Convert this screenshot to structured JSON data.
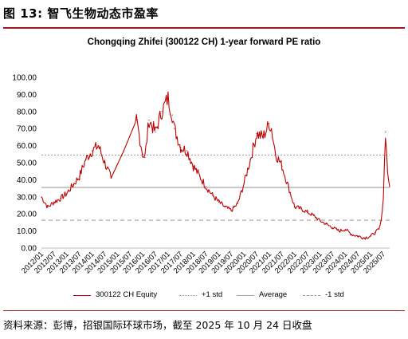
{
  "figure_title": "图 13: 智飞生物动态市盈率",
  "source": "资料来源：彭博，招银国际环球市场，截至 2025 年 10 月 24 日收盘",
  "chart_data": {
    "type": "line",
    "title": "Chongqing Zhifei (300122 CH) 1-year forward PE ratio",
    "xlabel": "",
    "ylabel": "",
    "ylim": [
      0,
      100
    ],
    "y_ticks": [
      "0.00",
      "10.00",
      "20.00",
      "30.00",
      "40.00",
      "50.00",
      "60.00",
      "70.00",
      "80.00",
      "90.00",
      "100.00"
    ],
    "x_range": [
      "2012-01",
      "2025-10"
    ],
    "x_ticks": [
      "2012/01",
      "2012/07",
      "2013/01",
      "2013/07",
      "2014/01",
      "2014/07",
      "2015/01",
      "2015/07",
      "2016/01",
      "2016/07",
      "2017/01",
      "2017/07",
      "2018/01",
      "2018/07",
      "2019/01",
      "2019/07",
      "2020/01",
      "2020/07",
      "2021/01",
      "2021/07",
      "2022/01",
      "2022/07",
      "2023/01",
      "2023/07",
      "2024/01",
      "2024/07",
      "2025/01",
      "2025/07"
    ],
    "grid": false,
    "legend_position": "bottom",
    "series": [
      {
        "name": "300122 CH Equity",
        "color": "#c00000",
        "style": "solid",
        "x": [
          "2012-01",
          "2012-04",
          "2012-07",
          "2012-10",
          "2013-01",
          "2013-04",
          "2013-07",
          "2013-10",
          "2014-01",
          "2014-04",
          "2014-07",
          "2014-10",
          "2015-01",
          "2015-04",
          "2015-07",
          "2015-10",
          "2016-01",
          "2016-02",
          "2016-04",
          "2016-07",
          "2016-10",
          "2017-01",
          "2017-03",
          "2017-04",
          "2017-07",
          "2017-10",
          "2018-01",
          "2018-04",
          "2018-07",
          "2018-10",
          "2019-01",
          "2019-04",
          "2019-07",
          "2019-10",
          "2020-01",
          "2020-04",
          "2020-07",
          "2020-10",
          "2021-01",
          "2021-02",
          "2021-04",
          "2021-07",
          "2021-10",
          "2022-01",
          "2022-04",
          "2022-07",
          "2022-10",
          "2023-01",
          "2023-04",
          "2023-07",
          "2023-10",
          "2024-01",
          "2024-04",
          "2024-07",
          "2024-10",
          "2025-01",
          "2025-03",
          "2025-05",
          "2025-06",
          "2025-07",
          "2025-08",
          "2025-09",
          "2025-10"
        ],
        "values": [
          30,
          24,
          27,
          29,
          32,
          37,
          42,
          52,
          57,
          60,
          50,
          41,
          49,
          57,
          66,
          75,
          55,
          53,
          75,
          68,
          80,
          88,
          78,
          70,
          59,
          57,
          48,
          42,
          36,
          31,
          27,
          24,
          22,
          26,
          38,
          52,
          67,
          65,
          73,
          70,
          55,
          48,
          36,
          24,
          23,
          21,
          19,
          16,
          14,
          12,
          10,
          11,
          8,
          7,
          6,
          7,
          9,
          11,
          16,
          30,
          68,
          45,
          36
        ]
      },
      {
        "name": "+1 std",
        "color": "#999999",
        "style": "dotted",
        "values": [
          54.5
        ]
      },
      {
        "name": "Average",
        "color": "#a6a6a6",
        "style": "solid",
        "values": [
          35.5
        ]
      },
      {
        "name": "-1 std",
        "color": "#999999",
        "style": "dashed",
        "values": [
          16.3
        ]
      }
    ]
  }
}
